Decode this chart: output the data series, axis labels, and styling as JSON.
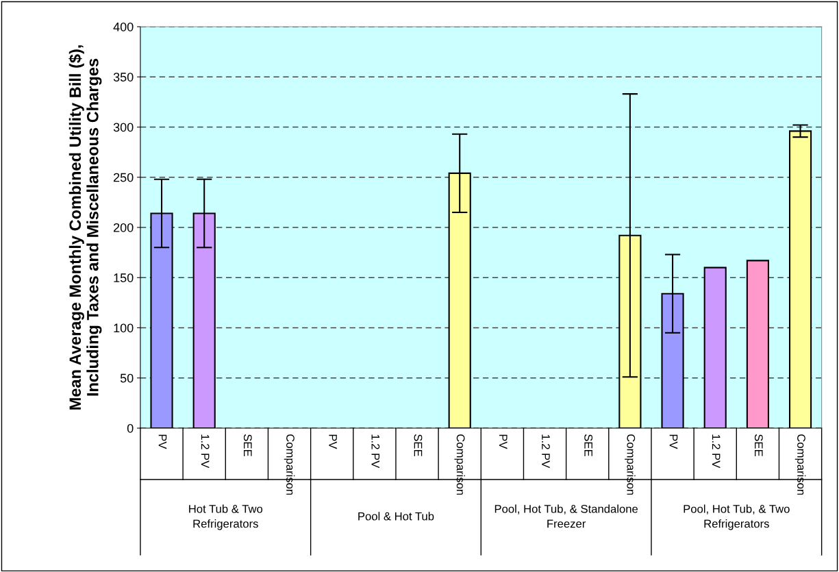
{
  "chart_data": {
    "type": "bar",
    "ylabel": "Mean Average Monthly Combined Utility Bill ($),\nIncluding Taxes and Miscellaneous Charges",
    "categories": [
      "PV",
      "1.2 PV",
      "SEE",
      "Comparison",
      "PV",
      "1.2 PV",
      "SEE",
      "Comparison",
      "PV",
      "1.2 PV",
      "SEE",
      "Comparison",
      "PV",
      "1.2 PV",
      "SEE",
      "Comparison"
    ],
    "values": [
      214,
      214,
      null,
      null,
      null,
      null,
      null,
      254,
      null,
      null,
      null,
      192,
      134,
      160,
      167,
      296
    ],
    "errors": [
      34,
      34,
      null,
      null,
      null,
      null,
      null,
      39,
      null,
      null,
      null,
      141,
      39,
      null,
      null,
      6
    ],
    "colors": [
      "#9999ff",
      "#cc99ff",
      "#ff99cc",
      "#ffff99",
      "#9999ff",
      "#cc99ff",
      "#ff99cc",
      "#ffff99",
      "#9999ff",
      "#cc99ff",
      "#ff99cc",
      "#ffff99",
      "#9999ff",
      "#cc99ff",
      "#ff99cc",
      "#ffff99"
    ],
    "annotations": [
      "Hot Tub & Two\nRefrigerators",
      "Pool & Hot Tub",
      "Pool, Hot Tub, & Standalone\nFreezer",
      "Pool, Hot Tub, & Two\nRefrigerators"
    ],
    "ylim": [
      0,
      400
    ],
    "yticks": [
      0,
      50,
      100,
      150,
      200,
      250,
      300,
      350,
      400
    ],
    "grid": "y",
    "line_style": "dashed",
    "legend": false
  }
}
